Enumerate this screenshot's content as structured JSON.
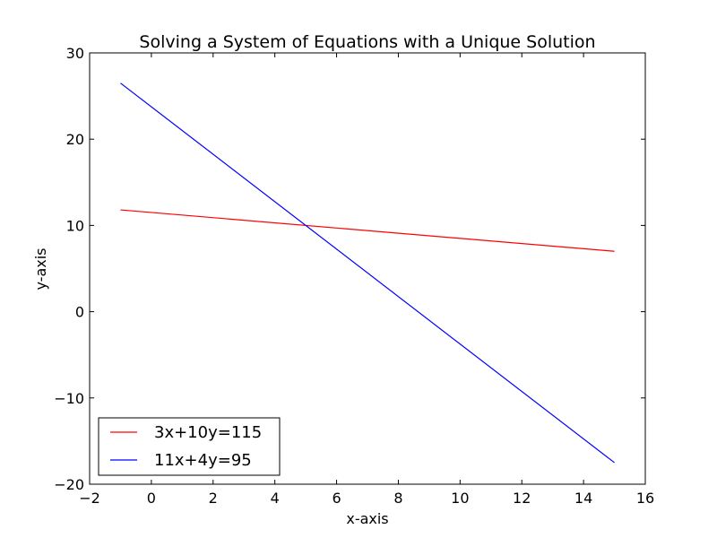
{
  "chart_data": {
    "type": "line",
    "title": "Solving a System of Equations with a Unique Solution",
    "xlabel": "x-axis",
    "ylabel": "y-axis",
    "xlim": [
      -2,
      16
    ],
    "ylim": [
      -20,
      30
    ],
    "xticks": [
      -2,
      0,
      2,
      4,
      6,
      8,
      10,
      12,
      14,
      16
    ],
    "xtick_labels": [
      "−2",
      "0",
      "2",
      "4",
      "6",
      "8",
      "10",
      "12",
      "14",
      "16"
    ],
    "yticks": [
      -20,
      -10,
      0,
      10,
      20,
      30
    ],
    "ytick_labels": [
      "−20",
      "−10",
      "0",
      "10",
      "20",
      "30"
    ],
    "grid": false,
    "legend_position": "lower-left",
    "series": [
      {
        "name": "3x+10y=115",
        "color": "#ff0000",
        "x": [
          -1,
          15
        ],
        "y": [
          11.8,
          7.0
        ]
      },
      {
        "name": "11x+4y=95",
        "color": "#0000ff",
        "x": [
          -1,
          15
        ],
        "y": [
          26.5,
          -17.5
        ]
      }
    ]
  }
}
